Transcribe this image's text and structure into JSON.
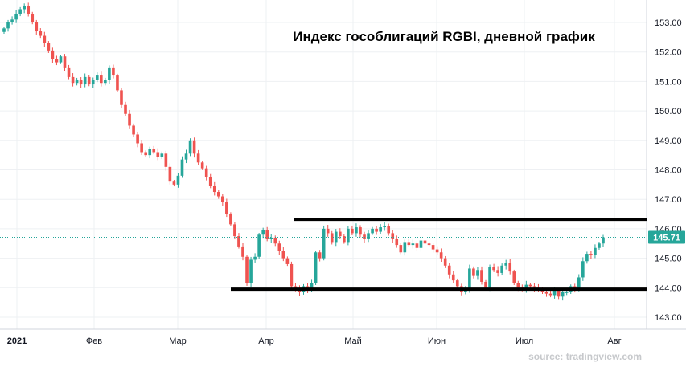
{
  "chart_data": {
    "type": "candlestick",
    "title": "Индекс гособлигаций RGBI, дневной график",
    "source": "source: tradingview.com",
    "ylim": [
      142.6,
      153.6
    ],
    "yticks": [
      "153.00",
      "152.00",
      "151.00",
      "150.00",
      "149.00",
      "148.00",
      "147.00",
      "146.00",
      "145.00",
      "144.00",
      "143.00"
    ],
    "xticks": [
      {
        "label": "2021",
        "year": true
      },
      {
        "label": "Фев"
      },
      {
        "label": "Мар"
      },
      {
        "label": "Апр"
      },
      {
        "label": "Май"
      },
      {
        "label": "Июн"
      },
      {
        "label": "Июл"
      },
      {
        "label": "Авг"
      }
    ],
    "last_price": {
      "label": "145.71",
      "value": 145.71
    },
    "levels": [
      {
        "value": 146.32,
        "label": "resistance"
      },
      {
        "value": 143.95,
        "label": "support"
      }
    ],
    "colors": {
      "up": "#26a69a",
      "down": "#ef5350",
      "grid": "#eef0f3",
      "price_tag": "#26a69a",
      "level": "#000000"
    },
    "closes": [
      152.8,
      153.0,
      153.1,
      153.3,
      153.45,
      153.55,
      153.3,
      153.0,
      152.7,
      152.55,
      152.3,
      152.05,
      151.75,
      151.65,
      151.85,
      151.45,
      151.15,
      150.95,
      151.05,
      150.9,
      151.15,
      150.9,
      151.05,
      151.2,
      150.95,
      151.05,
      151.45,
      151.2,
      150.7,
      150.2,
      149.9,
      149.5,
      149.2,
      148.9,
      148.6,
      148.5,
      148.7,
      148.6,
      148.45,
      148.55,
      148.1,
      147.6,
      147.5,
      147.8,
      148.35,
      148.55,
      149.0,
      148.55,
      148.25,
      148.05,
      147.75,
      147.45,
      147.25,
      147.1,
      146.9,
      146.5,
      146.15,
      145.75,
      145.4,
      145.05,
      144.15,
      144.95,
      145.05,
      145.8,
      145.95,
      145.65,
      145.7,
      145.5,
      145.25,
      145.0,
      144.8,
      144.05,
      143.95,
      143.85,
      144.05,
      143.95,
      144.15,
      145.2,
      145.0,
      146.0,
      145.85,
      145.55,
      145.9,
      145.75,
      145.55,
      146.0,
      145.85,
      146.05,
      145.8,
      145.65,
      145.85,
      146.0,
      145.9,
      146.05,
      146.1,
      145.85,
      145.65,
      145.45,
      145.2,
      145.55,
      145.45,
      145.5,
      145.35,
      145.6,
      145.5,
      145.45,
      145.3,
      145.2,
      145.0,
      144.75,
      144.45,
      144.25,
      144.05,
      143.85,
      143.95,
      144.65,
      144.4,
      144.6,
      144.2,
      144.0,
      144.7,
      144.6,
      144.5,
      144.75,
      144.85,
      144.55,
      144.15,
      144.0,
      143.95,
      144.1,
      144.05,
      144.0,
      143.95,
      143.85,
      143.8,
      143.75,
      143.9,
      143.7,
      143.85,
      143.85,
      144.05,
      143.95,
      144.35,
      144.9,
      145.15,
      145.1,
      145.35,
      145.5,
      145.71
    ]
  }
}
